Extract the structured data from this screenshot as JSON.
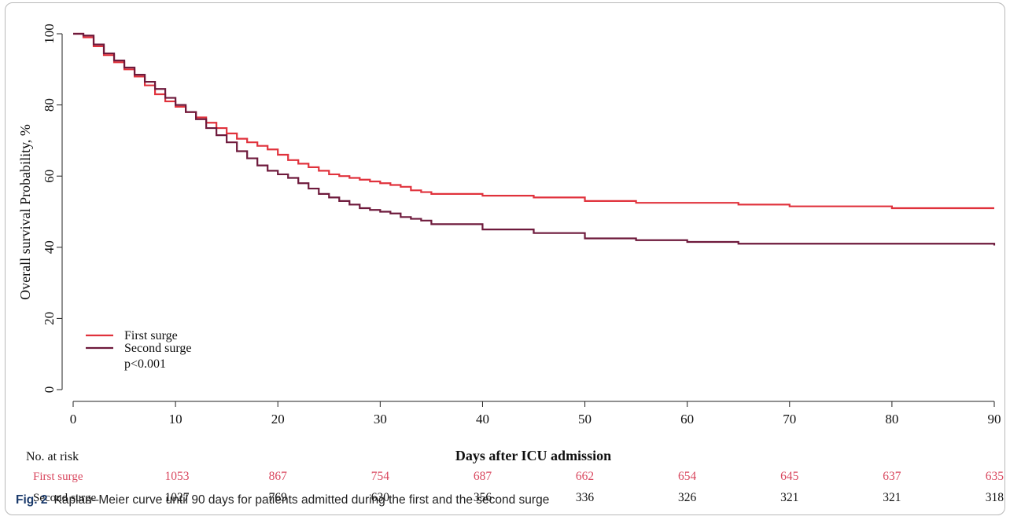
{
  "chart_data": {
    "type": "line",
    "step": true,
    "ylabel": "Overall survival Probability, %",
    "xlabel": "Days after ICU admission",
    "xlim": [
      0,
      90
    ],
    "ylim": [
      0,
      100
    ],
    "x_ticks": [
      "0",
      "10",
      "20",
      "30",
      "40",
      "50",
      "60",
      "70",
      "80",
      "90"
    ],
    "y_ticks": [
      "0",
      "20",
      "40",
      "60",
      "80",
      "100"
    ],
    "series": [
      {
        "name": "First surge",
        "color": "#e0323c",
        "x": [
          0,
          1,
          2,
          3,
          4,
          5,
          6,
          7,
          8,
          9,
          10,
          11,
          12,
          13,
          14,
          15,
          16,
          17,
          18,
          19,
          20,
          21,
          22,
          23,
          24,
          25,
          26,
          27,
          28,
          29,
          30,
          31,
          32,
          33,
          34,
          35,
          40,
          45,
          50,
          55,
          60,
          65,
          70,
          75,
          80,
          85,
          90
        ],
        "values": [
          100,
          99,
          96.5,
          94,
          92,
          90,
          88,
          85.5,
          83,
          81,
          79.5,
          78,
          76.5,
          75,
          73.5,
          72,
          70.5,
          69.5,
          68.5,
          67.5,
          66,
          64.5,
          63.5,
          62.5,
          61.5,
          60.5,
          60,
          59.5,
          59,
          58.5,
          58,
          57.5,
          57,
          56,
          55.5,
          55,
          54.5,
          54,
          53,
          52.5,
          52.5,
          52,
          51.5,
          51.5,
          51,
          51,
          51
        ]
      },
      {
        "name": "Second surge",
        "color": "#6e1a3c",
        "x": [
          0,
          1,
          2,
          3,
          4,
          5,
          6,
          7,
          8,
          9,
          10,
          11,
          12,
          13,
          14,
          15,
          16,
          17,
          18,
          19,
          20,
          21,
          22,
          23,
          24,
          25,
          26,
          27,
          28,
          29,
          30,
          31,
          32,
          33,
          34,
          35,
          40,
          45,
          50,
          55,
          60,
          65,
          70,
          75,
          80,
          85,
          90
        ],
        "values": [
          100,
          99.5,
          97,
          94.5,
          92.5,
          90.5,
          88.5,
          86.5,
          84.5,
          82,
          80,
          78,
          76,
          73.5,
          71.5,
          69.5,
          67,
          65,
          63,
          61.5,
          60.5,
          59.5,
          58,
          56.5,
          55,
          54,
          53,
          52,
          51,
          50.5,
          50,
          49.5,
          48.5,
          48,
          47.5,
          46.5,
          45,
          44,
          42.5,
          42,
          41.5,
          41,
          41,
          41,
          41,
          41,
          40.5
        ]
      }
    ],
    "annotation": "p<0.001",
    "legend_position": "bottom-left",
    "risk_table": {
      "title": "No. at risk",
      "rows": [
        {
          "label": "First surge",
          "color": "#d9485f",
          "values": [
            "1053",
            "867",
            "754",
            "687",
            "662",
            "654",
            "645",
            "637",
            "635"
          ]
        },
        {
          "label": "Second surge",
          "color": "#111111",
          "values": [
            "1027",
            "769",
            "630",
            "356",
            "336",
            "326",
            "321",
            "321",
            "318"
          ]
        }
      ]
    }
  },
  "caption": {
    "label": "Fig. 2",
    "text": "Kaplan–Meier curve until 90 days for patients admitted during the first and the second surge"
  }
}
